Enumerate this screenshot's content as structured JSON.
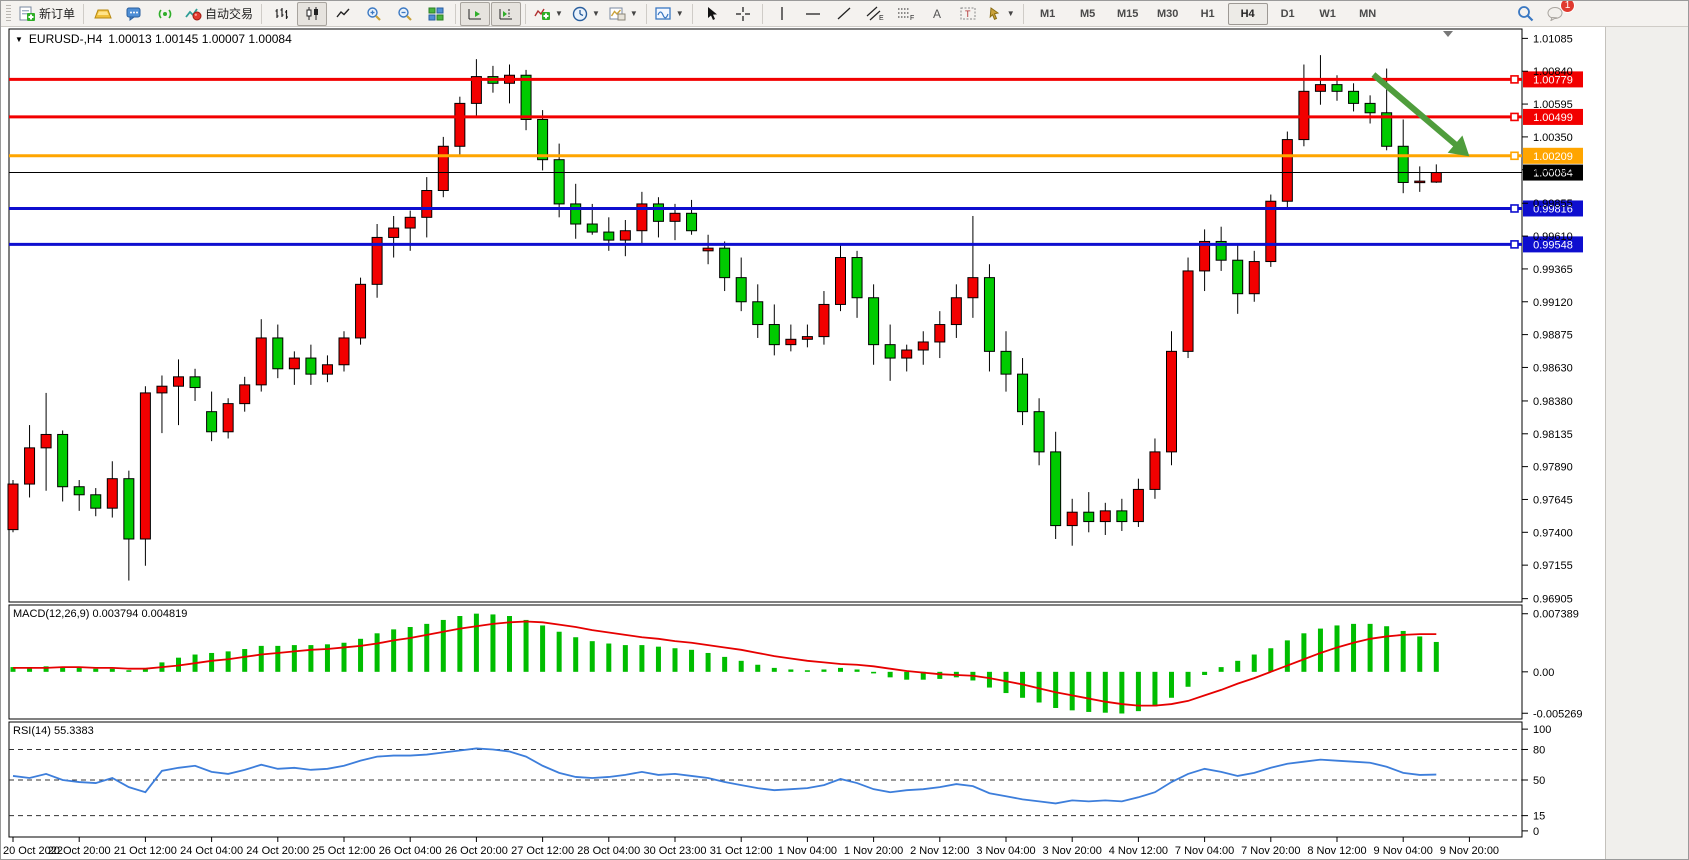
{
  "toolbar": {
    "new_order_label": "新订单",
    "autotrading_label": "自动交易",
    "timeframes": [
      {
        "label": "M1",
        "active": false
      },
      {
        "label": "M5",
        "active": false
      },
      {
        "label": "M15",
        "active": false
      },
      {
        "label": "M30",
        "active": false
      },
      {
        "label": "H1",
        "active": false
      },
      {
        "label": "H4",
        "active": true
      },
      {
        "label": "D1",
        "active": false
      },
      {
        "label": "W1",
        "active": false
      },
      {
        "label": "MN",
        "active": false
      }
    ],
    "notification_badge": "1"
  },
  "chart": {
    "symbol": "EURUSD-,H4",
    "ohlc_line": "1.00013 1.00145 1.00007 1.00084",
    "colors": {
      "up_candle": "#f20000",
      "down_candle": "#00cb00",
      "wick": "#000000",
      "macd_hist": "#00bd00",
      "macd_signal": "#e60000",
      "rsi_line": "#3d7edb",
      "arrow": "#4f9d3c",
      "level_red": "#f20000",
      "level_blue": "#0e0ecf",
      "level_orange": "#ffa500",
      "current_price": "#000000"
    }
  },
  "price_scale": {
    "ticks": [
      "1.01085",
      "1.00840",
      "1.00595",
      "1.00350",
      "1.00105",
      "0.99855",
      "0.99610",
      "0.99365",
      "0.99120",
      "0.98875",
      "0.98630",
      "0.98380",
      "0.98135",
      "0.97890",
      "0.97645",
      "0.97400",
      "0.97155",
      "0.96905"
    ]
  },
  "price_lines": [
    {
      "price": 1.00779,
      "label": "1.00779",
      "color": "#f20000",
      "width": 3
    },
    {
      "price": 1.00499,
      "label": "1.00499",
      "color": "#f20000",
      "width": 3
    },
    {
      "price": 1.00209,
      "label": "1.00209",
      "color": "#ffa500",
      "width": 3
    },
    {
      "price": 1.00084,
      "label": "1.00084",
      "color": "#000000",
      "width": 1
    },
    {
      "price": 0.99816,
      "label": "0.99816",
      "color": "#0e0ecf",
      "width": 3
    },
    {
      "price": 0.99548,
      "label": "0.99548",
      "color": "#0e0ecf",
      "width": 3
    }
  ],
  "time_axis": {
    "labels": [
      "20 Oct 2022",
      "20 Oct 20:00",
      "21 Oct 12:00",
      "24 Oct 04:00",
      "24 Oct 20:00",
      "25 Oct 12:00",
      "26 Oct 04:00",
      "26 Oct 20:00",
      "27 Oct 12:00",
      "28 Oct 04:00",
      "30 Oct 23:00",
      "31 Oct 12:00",
      "1 Nov 04:00",
      "1 Nov 20:00",
      "2 Nov 12:00",
      "3 Nov 04:00",
      "3 Nov 20:00",
      "4 Nov 12:00",
      "7 Nov 04:00",
      "7 Nov 20:00",
      "8 Nov 12:00",
      "9 Nov 04:00",
      "9 Nov 20:00"
    ]
  },
  "macd_panel": {
    "label": "MACD(12,26,9)",
    "value_main": "0.003794",
    "value_signal": "0.004819",
    "scale": [
      "0.007389",
      "0.00",
      "-0.005269"
    ]
  },
  "rsi_panel": {
    "label": "RSI(14)",
    "value": "55.3383",
    "scale": [
      "100",
      "80",
      "50",
      "15",
      "0"
    ],
    "levels": [
      80,
      50,
      15
    ]
  },
  "chart_data": {
    "type": "candlestick",
    "symbol": "EURUSD-",
    "timeframe": "H4",
    "x_range": [
      "20 Oct 2022 00:00",
      "9 Nov 2022 (current bar)"
    ],
    "y_ticks": [
      1.01085,
      1.0084,
      1.00595,
      1.0035,
      1.00105,
      0.99855,
      0.9961,
      0.99365,
      0.9912,
      0.98875,
      0.9863,
      0.9838,
      0.98135,
      0.9789,
      0.97645,
      0.974,
      0.97155,
      0.96905
    ],
    "ohlc": [
      [
        0.9742,
        0.9779,
        0.974,
        0.9776
      ],
      [
        0.9776,
        0.982,
        0.9766,
        0.9803
      ],
      [
        0.9803,
        0.9844,
        0.9771,
        0.9813
      ],
      [
        0.9813,
        0.9816,
        0.9763,
        0.9774
      ],
      [
        0.9774,
        0.9779,
        0.9756,
        0.9768
      ],
      [
        0.9768,
        0.9773,
        0.9752,
        0.9758
      ],
      [
        0.9758,
        0.9793,
        0.9751,
        0.978
      ],
      [
        0.978,
        0.9786,
        0.9704,
        0.9735
      ],
      [
        0.9735,
        0.9849,
        0.9715,
        0.9844
      ],
      [
        0.9844,
        0.9857,
        0.9814,
        0.9849
      ],
      [
        0.9849,
        0.9869,
        0.982,
        0.9856
      ],
      [
        0.9856,
        0.9862,
        0.9838,
        0.9848
      ],
      [
        0.983,
        0.9845,
        0.9808,
        0.9815
      ],
      [
        0.9815,
        0.984,
        0.981,
        0.9836
      ],
      [
        0.9836,
        0.9856,
        0.983,
        0.985
      ],
      [
        0.985,
        0.9899,
        0.9845,
        0.9885
      ],
      [
        0.9885,
        0.9895,
        0.9855,
        0.9862
      ],
      [
        0.9862,
        0.9875,
        0.985,
        0.987
      ],
      [
        0.987,
        0.988,
        0.985,
        0.9858
      ],
      [
        0.9858,
        0.9872,
        0.9852,
        0.9865
      ],
      [
        0.9865,
        0.989,
        0.986,
        0.9885
      ],
      [
        0.9885,
        0.993,
        0.988,
        0.9925
      ],
      [
        0.9925,
        0.997,
        0.9915,
        0.996
      ],
      [
        0.996,
        0.9976,
        0.9945,
        0.9967
      ],
      [
        0.9967,
        0.998,
        0.995,
        0.9975
      ],
      [
        0.9975,
        1.0005,
        0.996,
        0.9995
      ],
      [
        0.9995,
        1.0035,
        0.999,
        1.0028
      ],
      [
        1.0028,
        1.0065,
        1.002,
        1.006
      ],
      [
        1.006,
        1.0093,
        1.005,
        1.008
      ],
      [
        1.008,
        1.0088,
        1.0068,
        1.0075
      ],
      [
        1.0075,
        1.0089,
        1.006,
        1.0081
      ],
      [
        1.0081,
        1.0085,
        1.004,
        1.0048
      ],
      [
        1.0048,
        1.0055,
        1.001,
        1.0018
      ],
      [
        1.0018,
        1.003,
        0.9975,
        0.9985
      ],
      [
        0.9985,
        1.0,
        0.9959,
        0.997
      ],
      [
        0.997,
        0.9985,
        0.9962,
        0.9964
      ],
      [
        0.9964,
        0.9975,
        0.995,
        0.9958
      ],
      [
        0.9958,
        0.9973,
        0.9946,
        0.9965
      ],
      [
        0.9965,
        0.9994,
        0.9955,
        0.9985
      ],
      [
        0.9985,
        0.999,
        0.996,
        0.9972
      ],
      [
        0.9972,
        0.9985,
        0.9958,
        0.9978
      ],
      [
        0.9978,
        0.9988,
        0.9962,
        0.9965
      ],
      [
        0.995,
        0.9962,
        0.994,
        0.9952
      ],
      [
        0.9952,
        0.9957,
        0.992,
        0.993
      ],
      [
        0.993,
        0.9945,
        0.9905,
        0.9912
      ],
      [
        0.9912,
        0.9925,
        0.9885,
        0.9895
      ],
      [
        0.9895,
        0.991,
        0.9872,
        0.988
      ],
      [
        0.988,
        0.9895,
        0.9875,
        0.9884
      ],
      [
        0.9884,
        0.9895,
        0.9878,
        0.9886
      ],
      [
        0.9886,
        0.992,
        0.988,
        0.991
      ],
      [
        0.991,
        0.9954,
        0.9905,
        0.9945
      ],
      [
        0.9945,
        0.995,
        0.99,
        0.9915
      ],
      [
        0.9915,
        0.9925,
        0.9865,
        0.988
      ],
      [
        0.988,
        0.9895,
        0.9853,
        0.987
      ],
      [
        0.987,
        0.988,
        0.986,
        0.9876
      ],
      [
        0.9876,
        0.989,
        0.9865,
        0.9882
      ],
      [
        0.9882,
        0.9905,
        0.987,
        0.9895
      ],
      [
        0.9895,
        0.9925,
        0.9885,
        0.9915
      ],
      [
        0.9915,
        0.9976,
        0.99,
        0.993
      ],
      [
        0.993,
        0.994,
        0.986,
        0.9875
      ],
      [
        0.9875,
        0.989,
        0.9845,
        0.9858
      ],
      [
        0.9858,
        0.987,
        0.982,
        0.983
      ],
      [
        0.983,
        0.984,
        0.979,
        0.98
      ],
      [
        0.98,
        0.9815,
        0.9735,
        0.9745
      ],
      [
        0.9745,
        0.9765,
        0.973,
        0.9755
      ],
      [
        0.9755,
        0.977,
        0.974,
        0.9748
      ],
      [
        0.9748,
        0.9762,
        0.9738,
        0.9756
      ],
      [
        0.9756,
        0.9765,
        0.9741,
        0.9748
      ],
      [
        0.9748,
        0.978,
        0.9744,
        0.9772
      ],
      [
        0.9772,
        0.981,
        0.9765,
        0.98
      ],
      [
        0.98,
        0.989,
        0.979,
        0.9875
      ],
      [
        0.9875,
        0.9945,
        0.987,
        0.9935
      ],
      [
        0.9935,
        0.9966,
        0.992,
        0.9957
      ],
      [
        0.9957,
        0.9968,
        0.9935,
        0.9943
      ],
      [
        0.9943,
        0.9955,
        0.9903,
        0.9918
      ],
      [
        0.9918,
        0.995,
        0.9912,
        0.9942
      ],
      [
        0.9942,
        0.9992,
        0.9938,
        0.9987
      ],
      [
        0.9987,
        1.0039,
        0.9982,
        1.0033
      ],
      [
        1.0033,
        1.0089,
        1.0028,
        1.0069
      ],
      [
        1.0069,
        1.0096,
        1.0059,
        1.0074
      ],
      [
        1.0074,
        1.0081,
        1.0062,
        1.0069
      ],
      [
        1.0069,
        1.0075,
        1.0054,
        1.006
      ],
      [
        1.006,
        1.0066,
        1.0045,
        1.0053
      ],
      [
        1.0053,
        1.0086,
        1.0025,
        1.0028
      ],
      [
        1.0028,
        1.0048,
        0.9993,
        1.0001
      ],
      [
        1.0001,
        1.0013,
        0.9994,
        1.0002
      ],
      [
        1.00013,
        1.00145,
        1.00007,
        1.00084
      ]
    ],
    "macd_hist": [
      0.0006,
      0.0005,
      0.0007,
      0.0006,
      0.0005,
      0.0004,
      0.0004,
      0.0002,
      0.0004,
      0.0012,
      0.0018,
      0.0022,
      0.0024,
      0.0026,
      0.0029,
      0.0033,
      0.0033,
      0.0034,
      0.0034,
      0.0035,
      0.0037,
      0.0042,
      0.0049,
      0.0054,
      0.0057,
      0.0061,
      0.0066,
      0.0071,
      0.0074,
      0.0073,
      0.0071,
      0.0066,
      0.0059,
      0.0051,
      0.0044,
      0.0039,
      0.0036,
      0.0034,
      0.0034,
      0.0032,
      0.003,
      0.0028,
      0.0024,
      0.0019,
      0.0014,
      0.0009,
      0.0005,
      0.0003,
      0.0002,
      0.0003,
      0.0005,
      0.0003,
      -0.0002,
      -0.0007,
      -0.001,
      -0.001,
      -0.0009,
      -0.0007,
      -0.0011,
      -0.002,
      -0.0027,
      -0.0033,
      -0.0039,
      -0.0046,
      -0.0049,
      -0.0051,
      -0.0052,
      -0.0053,
      -0.005,
      -0.0044,
      -0.0033,
      -0.0019,
      -0.0004,
      0.0006,
      0.0014,
      0.0022,
      0.003,
      0.004,
      0.0049,
      0.0055,
      0.0059,
      0.0061,
      0.0061,
      0.0058,
      0.0052,
      0.0045,
      0.0038
    ],
    "macd_signal": [
      0.0005,
      0.0005,
      0.0005,
      0.0006,
      0.0006,
      0.0005,
      0.0005,
      0.0004,
      0.0004,
      0.0006,
      0.0008,
      0.0011,
      0.0014,
      0.0016,
      0.0019,
      0.0022,
      0.0024,
      0.0026,
      0.0028,
      0.0029,
      0.0031,
      0.0033,
      0.0036,
      0.004,
      0.0043,
      0.0047,
      0.0051,
      0.0055,
      0.0058,
      0.0061,
      0.0063,
      0.0064,
      0.0063,
      0.006,
      0.0057,
      0.0053,
      0.005,
      0.0047,
      0.0044,
      0.0042,
      0.0039,
      0.0037,
      0.0034,
      0.0031,
      0.0028,
      0.0024,
      0.002,
      0.0017,
      0.0014,
      0.0012,
      0.001,
      0.0009,
      0.0007,
      0.0004,
      0.0001,
      -0.0001,
      -0.0003,
      -0.0004,
      -0.0005,
      -0.0008,
      -0.0012,
      -0.0016,
      -0.0021,
      -0.0026,
      -0.003,
      -0.0034,
      -0.0038,
      -0.0041,
      -0.0043,
      -0.0043,
      -0.0041,
      -0.0037,
      -0.003,
      -0.0023,
      -0.0015,
      -0.0008,
      0.0,
      0.0008,
      0.0016,
      0.0024,
      0.0031,
      0.0037,
      0.0042,
      0.0045,
      0.0047,
      0.0048,
      0.0048
    ],
    "rsi": [
      54,
      52,
      56,
      50,
      48,
      47,
      52,
      43,
      38,
      59,
      62,
      64,
      58,
      56,
      60,
      65,
      61,
      62,
      60,
      61,
      64,
      69,
      73,
      74,
      74,
      75,
      77,
      79,
      81,
      80,
      78,
      73,
      64,
      57,
      53,
      52,
      53,
      55,
      58,
      55,
      56,
      54,
      52,
      48,
      45,
      42,
      40,
      41,
      42,
      45,
      51,
      47,
      41,
      38,
      40,
      41,
      43,
      46,
      44,
      37,
      34,
      31,
      29,
      27,
      30,
      29,
      30,
      29,
      33,
      38,
      48,
      56,
      61,
      58,
      54,
      57,
      62,
      66,
      68,
      70,
      69,
      68,
      67,
      63,
      57,
      55,
      55.34
    ],
    "annotations": {
      "arrow": {
        "from_bar": 82.2,
        "from_price": 1.00815,
        "to_bar": 88.0,
        "to_price": 1.00205
      }
    }
  }
}
